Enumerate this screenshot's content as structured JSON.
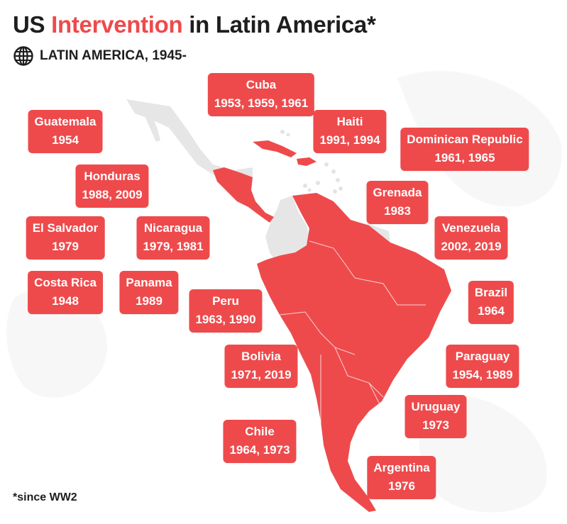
{
  "title": {
    "prefix": "US ",
    "highlight": "Intervention",
    "suffix": " in Latin America*"
  },
  "subtitle": "LATIN AMERICA, 1945-",
  "icon": "globe-icon",
  "footnote": "*since WW2",
  "colors": {
    "accent": "#ee4a4c",
    "text": "#1e1e1e",
    "map_neutral": "#e6e6e6",
    "label_text": "#ffffff"
  },
  "countries": [
    {
      "name": "Cuba",
      "years": "1953, 1959, 1961"
    },
    {
      "name": "Guatemala",
      "years": "1954"
    },
    {
      "name": "Haiti",
      "years": "1991, 1994"
    },
    {
      "name": "Dominican Republic",
      "years": "1961, 1965"
    },
    {
      "name": "Honduras",
      "years": "1988, 2009"
    },
    {
      "name": "Grenada",
      "years": "1983"
    },
    {
      "name": "El Salvador",
      "years": "1979"
    },
    {
      "name": "Nicaragua",
      "years": "1979, 1981"
    },
    {
      "name": "Venezuela",
      "years": "2002, 2019"
    },
    {
      "name": "Costa Rica",
      "years": "1948"
    },
    {
      "name": "Panama",
      "years": "1989"
    },
    {
      "name": "Peru",
      "years": "1963, 1990"
    },
    {
      "name": "Brazil",
      "years": "1964"
    },
    {
      "name": "Bolivia",
      "years": "1971, 2019"
    },
    {
      "name": "Paraguay",
      "years": "1954, 1989"
    },
    {
      "name": "Uruguay",
      "years": "1973"
    },
    {
      "name": "Chile",
      "years": "1964, 1973"
    },
    {
      "name": "Argentina",
      "years": "1976"
    }
  ]
}
